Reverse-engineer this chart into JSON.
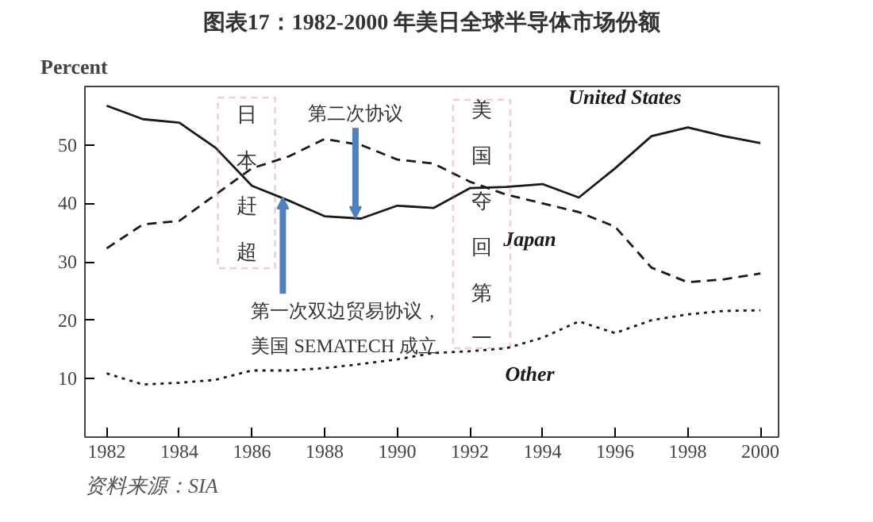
{
  "chart_data": {
    "type": "line",
    "title": "图表17：1982-2000 年美日全球半导体市场份额",
    "ylabel": "Percent",
    "x": [
      1982,
      1983,
      1984,
      1985,
      1986,
      1987,
      1988,
      1989,
      1990,
      1991,
      1992,
      1993,
      1994,
      1995,
      1996,
      1997,
      1998,
      1999,
      2000
    ],
    "series": [
      {
        "name": "United States",
        "color": "#1a1a1a",
        "line_style": "solid",
        "values": [
          56.7,
          54.4,
          53.8,
          49.5,
          43,
          40.5,
          37.8,
          37.4,
          39.6,
          39.2,
          42.6,
          42.8,
          43.3,
          41,
          46,
          51.5,
          53,
          51.5,
          50.3
        ]
      },
      {
        "name": "Japan",
        "color": "#1a1a1a",
        "line_style": "dashed",
        "values": [
          32.3,
          36.4,
          37,
          41.5,
          46,
          48,
          51,
          50,
          47.5,
          46.8,
          43.7,
          41.5,
          40,
          38.5,
          36,
          29,
          26.5,
          27,
          28
        ]
      },
      {
        "name": "Other",
        "color": "#1a1a1a",
        "line_style": "dotted",
        "values": [
          10.9,
          9,
          9.3,
          9.8,
          11.4,
          11.4,
          11.8,
          12.5,
          13.3,
          14.4,
          14.7,
          15.2,
          17,
          19.8,
          17.8,
          20,
          21,
          21.6,
          21.7
        ]
      }
    ],
    "xlim": [
      1981.4,
      2000.5
    ],
    "ylim": [
      0,
      60
    ],
    "xticks": [
      1982,
      1984,
      1986,
      1988,
      1990,
      1992,
      1994,
      1996,
      1998,
      2000
    ],
    "yticks": [
      10,
      20,
      30,
      40,
      50
    ],
    "grid": false,
    "marker": "none",
    "annotations": [
      {
        "text": "日本赶超",
        "x": 1985.85,
        "y": 43.5
      },
      {
        "text": "第二次协议",
        "x": 1988.85,
        "y": 37.5
      },
      {
        "text": "第一次双边贸易协议，",
        "x": 1986.85,
        "y": 41
      },
      "美国 SEMATECH 成立",
      "美国夺回第一",
      "资料来源：SIA"
    ]
  }
}
